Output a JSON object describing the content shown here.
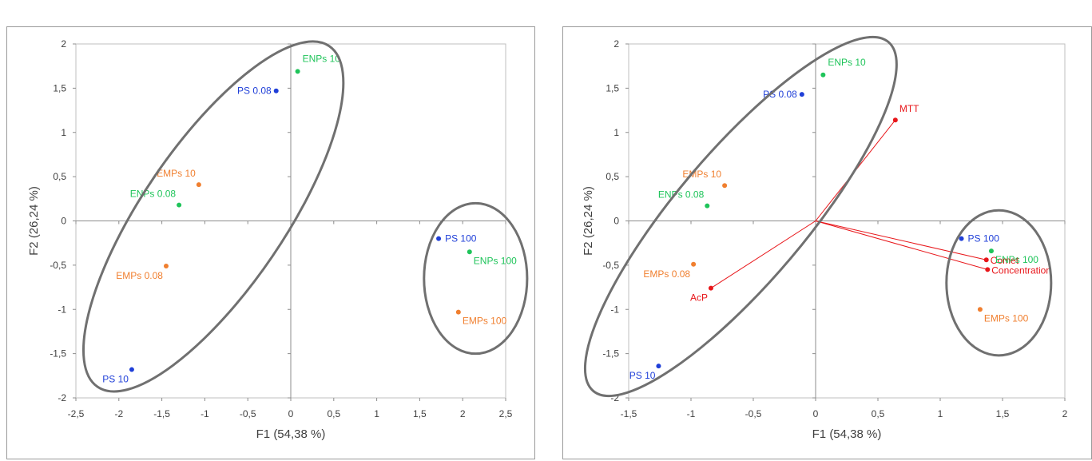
{
  "charts": [
    {
      "id": "left",
      "chart_data": {
        "type": "scatter",
        "title": "",
        "xlabel": "F1 (54,38 %)",
        "ylabel": "F2 (26,24 %)",
        "xlim": [
          -2.5,
          2.5
        ],
        "ylim": [
          -2,
          2
        ],
        "xticks": [
          -2.5,
          -2,
          -1.5,
          -1,
          -0.5,
          0,
          0.5,
          1,
          1.5,
          2,
          2.5
        ],
        "yticks": [
          -2,
          -1.5,
          -1,
          -0.5,
          0,
          0.5,
          1,
          1.5,
          2
        ],
        "xtick_labels": [
          "-2,5",
          "-2",
          "-1,5",
          "-1",
          "-0,5",
          "0",
          "0,5",
          "1",
          "1,5",
          "2",
          "2,5"
        ],
        "ytick_labels": [
          "-2",
          "-1,5",
          "-1",
          "-0,5",
          "0",
          "0,5",
          "1",
          "1,5",
          "2"
        ],
        "grid": false,
        "points": [
          {
            "label": "PS 0.08",
            "x": -0.17,
            "y": 1.47,
            "group": "PS",
            "label_side": "left"
          },
          {
            "label": "ENPs 10",
            "x": 0.08,
            "y": 1.69,
            "group": "ENPs",
            "label_side": "up-right"
          },
          {
            "label": "EMPs 10",
            "x": -1.07,
            "y": 0.41,
            "group": "EMPs",
            "label_side": "up-left"
          },
          {
            "label": "ENPs 0.08",
            "x": -1.3,
            "y": 0.18,
            "group": "ENPs",
            "label_side": "up-left"
          },
          {
            "label": "EMPs 0.08",
            "x": -1.45,
            "y": -0.51,
            "group": "EMPs",
            "label_side": "down-left"
          },
          {
            "label": "PS 10",
            "x": -1.85,
            "y": -1.68,
            "group": "PS",
            "label_side": "down-left"
          },
          {
            "label": "PS 100",
            "x": 1.72,
            "y": -0.2,
            "group": "PS",
            "label_side": "right"
          },
          {
            "label": "ENPs 100",
            "x": 2.08,
            "y": -0.35,
            "group": "ENPs",
            "label_side": "down-right"
          },
          {
            "label": "EMPs 100",
            "x": 1.95,
            "y": -1.03,
            "group": "EMPs",
            "label_side": "down-right"
          }
        ],
        "ellipses": [
          {
            "cx": -0.9,
            "cy": 0.05,
            "rx": 2.35,
            "ry": 0.82,
            "angle_deg": 55
          },
          {
            "cx": 2.15,
            "cy": -0.65,
            "rx": 0.6,
            "ry": 0.85,
            "angle_deg": 0
          }
        ],
        "vectors": []
      }
    },
    {
      "id": "right",
      "chart_data": {
        "type": "scatter",
        "title": "",
        "xlabel": "F1 (54,38 %)",
        "ylabel": "F2 (26,24 %)",
        "xlim": [
          -1.5,
          2
        ],
        "ylim": [
          -2,
          2
        ],
        "xticks": [
          -1.5,
          -1,
          -0.5,
          0,
          0.5,
          1,
          1.5,
          2
        ],
        "yticks": [
          -2,
          -1.5,
          -1,
          -0.5,
          0,
          0.5,
          1,
          1.5,
          2
        ],
        "xtick_labels": [
          "-1,5",
          "-1",
          "-0,5",
          "0",
          "0,5",
          "1",
          "1,5",
          "2"
        ],
        "ytick_labels": [
          "-2",
          "-1,5",
          "-1",
          "-0,5",
          "0",
          "0,5",
          "1",
          "1,5",
          "2"
        ],
        "grid": false,
        "points": [
          {
            "label": "PS 0.08",
            "x": -0.11,
            "y": 1.43,
            "group": "PS",
            "label_side": "left"
          },
          {
            "label": "ENPs 10",
            "x": 0.06,
            "y": 1.65,
            "group": "ENPs",
            "label_side": "up-right"
          },
          {
            "label": "EMPs 10",
            "x": -0.73,
            "y": 0.4,
            "group": "EMPs",
            "label_side": "up-left"
          },
          {
            "label": "ENPs 0.08",
            "x": -0.87,
            "y": 0.17,
            "group": "ENPs",
            "label_side": "up-left"
          },
          {
            "label": "EMPs 0.08",
            "x": -0.98,
            "y": -0.49,
            "group": "EMPs",
            "label_side": "down-left"
          },
          {
            "label": "PS 10",
            "x": -1.26,
            "y": -1.64,
            "group": "PS",
            "label_side": "down-left"
          },
          {
            "label": "PS 100",
            "x": 1.17,
            "y": -0.2,
            "group": "PS",
            "label_side": "right"
          },
          {
            "label": "ENPs 100",
            "x": 1.41,
            "y": -0.34,
            "group": "ENPs",
            "label_side": "down-right"
          },
          {
            "label": "EMPs 100",
            "x": 1.32,
            "y": -1.0,
            "group": "EMPs",
            "label_side": "down-right"
          }
        ],
        "vectors": [
          {
            "label": "MTT",
            "x": 0.64,
            "y": 1.14,
            "label_side": "up-right"
          },
          {
            "label": "Comet",
            "x": 1.37,
            "y": -0.44,
            "label_side": "right-low"
          },
          {
            "label": "Concentration",
            "x": 1.38,
            "y": -0.55,
            "label_side": "right-low"
          },
          {
            "label": "AcP",
            "x": -0.84,
            "y": -0.76,
            "label_side": "down-left"
          }
        ],
        "ellipses": [
          {
            "cx": -0.6,
            "cy": 0.05,
            "rx": 2.3,
            "ry": 0.56,
            "angle_deg": 59
          },
          {
            "cx": 1.47,
            "cy": -0.7,
            "rx": 0.42,
            "ry": 0.82,
            "angle_deg": 0
          }
        ]
      }
    }
  ],
  "colors": {
    "PS": "#1f3fd8",
    "ENPs": "#1fc45a",
    "EMPs": "#f07f2f",
    "vector": "#e8161a",
    "ellipse": "#707070",
    "axis": "#8c8c8c",
    "text": "#404040"
  }
}
